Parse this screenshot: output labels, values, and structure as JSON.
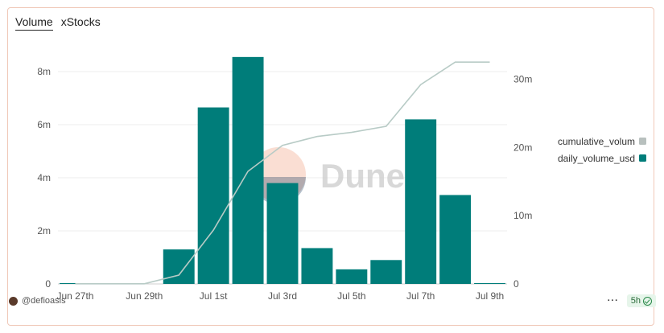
{
  "tabs": [
    {
      "label": "Volume",
      "active": true
    },
    {
      "label": "xStocks",
      "active": false
    }
  ],
  "watermark": "Dune",
  "author": "@defioasis",
  "refresh": "5h",
  "colors": {
    "bar": "#007d7a",
    "line": "#b8cbc6",
    "legend_line": "#b8c0be"
  },
  "chart_data": {
    "type": "bar",
    "x_tick_labels": [
      "Jun 27th",
      "Jun 29th",
      "Jul 1st",
      "Jul 3rd",
      "Jul 5th",
      "Jul 7th",
      "Jul 9th"
    ],
    "categories": [
      "Jun 27",
      "Jun 28",
      "Jun 29",
      "Jun 30",
      "Jul 1",
      "Jul 2",
      "Jul 3",
      "Jul 4",
      "Jul 5",
      "Jul 6",
      "Jul 7",
      "Jul 8",
      "Jul 9"
    ],
    "series": [
      {
        "name": "daily_volume_usd",
        "type": "bar",
        "axis": "left",
        "values": [
          0.02,
          0,
          0,
          1.3,
          6.65,
          8.55,
          3.8,
          1.35,
          0.55,
          0.9,
          6.2,
          3.35,
          0.01
        ]
      },
      {
        "name": "cumulative_volum",
        "type": "line",
        "axis": "right",
        "values": [
          0.02,
          0.02,
          0.02,
          1.3,
          7.9,
          16.5,
          20.3,
          21.6,
          22.2,
          23.1,
          29.2,
          32.5,
          32.5
        ]
      }
    ],
    "y_left": {
      "ticks": [
        0,
        2,
        4,
        6,
        8
      ],
      "tick_labels": [
        "0",
        "2m",
        "4m",
        "6m",
        "8m"
      ],
      "ylim": [
        0,
        9
      ]
    },
    "y_right": {
      "ticks": [
        0,
        10,
        20,
        30
      ],
      "tick_labels": [
        "0",
        "10m",
        "20m",
        "30m"
      ],
      "ylim": [
        0,
        35
      ]
    },
    "legend_position": "right",
    "grid": true
  }
}
